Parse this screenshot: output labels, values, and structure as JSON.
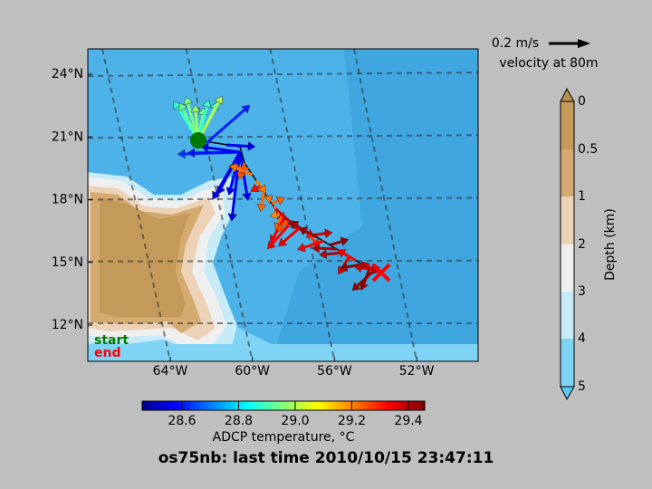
{
  "map": {
    "lat_labels": [
      "24°N",
      "21°N",
      "18°N",
      "15°N",
      "12°N"
    ],
    "lon_labels": [
      "64°W",
      "60°W",
      "56°W",
      "52°W"
    ],
    "start_label": "start",
    "end_label": "end"
  },
  "scale": {
    "speed": "0.2 m/s",
    "caption": "velocity at 80m"
  },
  "depth_colorbar": {
    "ticks": [
      "0",
      "0.5",
      "1",
      "2",
      "3",
      "4",
      "5"
    ],
    "label": "Depth (km)"
  },
  "temperature_colorbar": {
    "ticks": [
      "28.6",
      "28.8",
      "29.0",
      "29.2",
      "29.4"
    ],
    "label": "ADCP temperature, °C"
  },
  "title": "os75nb: last time 2010/10/15 23:47:11"
}
